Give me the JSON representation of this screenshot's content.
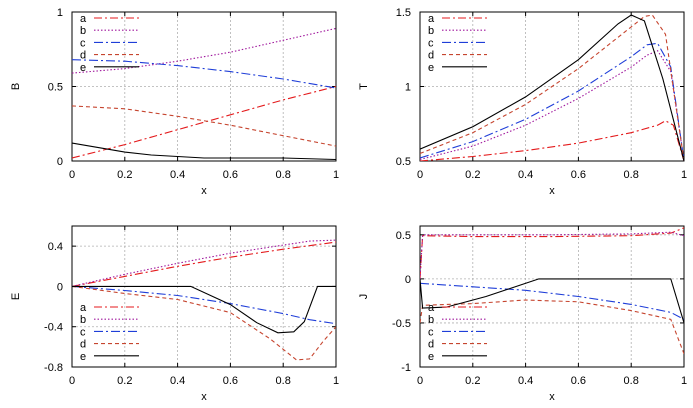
{
  "figure": {
    "series_names": [
      "a",
      "b",
      "c",
      "d",
      "e"
    ]
  },
  "chart_data": [
    {
      "type": "line",
      "xlabel": "x",
      "ylabel": "B",
      "xlim": [
        0,
        1
      ],
      "ylim": [
        0,
        1
      ],
      "xticks": [
        0,
        0.2,
        0.4,
        0.6,
        0.8,
        1
      ],
      "xtick_labels": [
        "0",
        "0.2",
        "0.4",
        "0.6",
        "0.8",
        "1"
      ],
      "yticks": [
        0,
        0.5,
        1
      ],
      "ytick_labels": [
        "0",
        "0.5",
        "1"
      ],
      "grid": true,
      "legend_position": "top-left",
      "series": [
        {
          "name": "a",
          "x": [
            0,
            0.2,
            0.4,
            0.6,
            0.8,
            1
          ],
          "y": [
            0.02,
            0.11,
            0.21,
            0.31,
            0.41,
            0.5
          ]
        },
        {
          "name": "b",
          "x": [
            0,
            0.2,
            0.4,
            0.6,
            0.8,
            1
          ],
          "y": [
            0.59,
            0.62,
            0.67,
            0.73,
            0.81,
            0.89
          ]
        },
        {
          "name": "c",
          "x": [
            0,
            0.2,
            0.4,
            0.6,
            0.8,
            1
          ],
          "y": [
            0.68,
            0.67,
            0.64,
            0.6,
            0.55,
            0.49
          ]
        },
        {
          "name": "d",
          "x": [
            0,
            0.2,
            0.4,
            0.6,
            0.8,
            1
          ],
          "y": [
            0.37,
            0.35,
            0.3,
            0.24,
            0.17,
            0.1
          ]
        },
        {
          "name": "e",
          "x": [
            0,
            0.1,
            0.2,
            0.3,
            0.4,
            0.5,
            0.6,
            0.8,
            1
          ],
          "y": [
            0.12,
            0.09,
            0.06,
            0.04,
            0.03,
            0.02,
            0.02,
            0.02,
            0.01
          ]
        }
      ]
    },
    {
      "type": "line",
      "xlabel": "x",
      "ylabel": "T",
      "xlim": [
        0,
        1
      ],
      "ylim": [
        0.5,
        1.5
      ],
      "xticks": [
        0,
        0.2,
        0.4,
        0.6,
        0.8,
        1
      ],
      "xtick_labels": [
        "0",
        "0.2",
        "0.4",
        "0.6",
        "0.8",
        "1"
      ],
      "yticks": [
        0.5,
        1,
        1.5
      ],
      "ytick_labels": [
        "0.5",
        "1",
        "1.5"
      ],
      "grid": true,
      "legend_position": "top-left",
      "series": [
        {
          "name": "a",
          "x": [
            0,
            0.2,
            0.4,
            0.6,
            0.8,
            0.9,
            0.93,
            0.96,
            1
          ],
          "y": [
            0.5,
            0.53,
            0.57,
            0.62,
            0.69,
            0.74,
            0.77,
            0.74,
            0.5
          ]
        },
        {
          "name": "b",
          "x": [
            0,
            0.2,
            0.4,
            0.6,
            0.8,
            0.86,
            0.9,
            0.95,
            1
          ],
          "y": [
            0.51,
            0.6,
            0.74,
            0.92,
            1.13,
            1.21,
            1.24,
            1.1,
            0.5
          ]
        },
        {
          "name": "c",
          "x": [
            0,
            0.2,
            0.4,
            0.6,
            0.8,
            0.86,
            0.9,
            0.95,
            1
          ],
          "y": [
            0.52,
            0.63,
            0.78,
            0.97,
            1.2,
            1.28,
            1.29,
            1.13,
            0.5
          ]
        },
        {
          "name": "d",
          "x": [
            0,
            0.2,
            0.4,
            0.6,
            0.8,
            0.85,
            0.88,
            0.93,
            1
          ],
          "y": [
            0.55,
            0.69,
            0.88,
            1.12,
            1.4,
            1.47,
            1.48,
            1.35,
            0.5
          ]
        },
        {
          "name": "e",
          "x": [
            0,
            0.2,
            0.4,
            0.6,
            0.75,
            0.8,
            0.85,
            0.92,
            1
          ],
          "y": [
            0.58,
            0.73,
            0.93,
            1.18,
            1.42,
            1.48,
            1.44,
            1.05,
            0.5
          ]
        }
      ]
    },
    {
      "type": "line",
      "xlabel": "x",
      "ylabel": "E",
      "xlim": [
        0,
        1
      ],
      "ylim": [
        -0.8,
        0.6
      ],
      "xticks": [
        0,
        0.2,
        0.4,
        0.6,
        0.8,
        1
      ],
      "xtick_labels": [
        "0",
        "0.2",
        "0.4",
        "0.6",
        "0.8",
        "1"
      ],
      "yticks": [
        -0.8,
        -0.4,
        0,
        0.4
      ],
      "ytick_labels": [
        "-0.8",
        "-0.4",
        "0",
        "0.4"
      ],
      "grid": true,
      "legend_position": "bottom-left",
      "series": [
        {
          "name": "a",
          "x": [
            0,
            0.2,
            0.4,
            0.6,
            0.8,
            1
          ],
          "y": [
            0,
            0.1,
            0.2,
            0.29,
            0.37,
            0.44
          ]
        },
        {
          "name": "b",
          "x": [
            0,
            0.2,
            0.4,
            0.6,
            0.8,
            0.9,
            1
          ],
          "y": [
            0,
            0.12,
            0.23,
            0.33,
            0.41,
            0.45,
            0.46
          ]
        },
        {
          "name": "c",
          "x": [
            0,
            0.2,
            0.4,
            0.6,
            0.8,
            0.9,
            1
          ],
          "y": [
            0,
            -0.04,
            -0.09,
            -0.17,
            -0.27,
            -0.33,
            -0.37
          ]
        },
        {
          "name": "d",
          "x": [
            0,
            0.2,
            0.4,
            0.6,
            0.75,
            0.85,
            0.9,
            0.95,
            1
          ],
          "y": [
            0,
            -0.07,
            -0.13,
            -0.26,
            -0.52,
            -0.73,
            -0.72,
            -0.55,
            -0.4
          ]
        },
        {
          "name": "e",
          "x": [
            0,
            0.45,
            0.6,
            0.7,
            0.78,
            0.84,
            0.88,
            0.93,
            1
          ],
          "y": [
            0,
            0,
            -0.18,
            -0.36,
            -0.46,
            -0.45,
            -0.35,
            0,
            0
          ]
        }
      ]
    },
    {
      "type": "line",
      "xlabel": "x",
      "ylabel": "J",
      "xlim": [
        0,
        1
      ],
      "ylim": [
        -1,
        0.6
      ],
      "xticks": [
        0,
        0.2,
        0.4,
        0.6,
        0.8,
        1
      ],
      "xtick_labels": [
        "0",
        "0.2",
        "0.4",
        "0.6",
        "0.8",
        "1"
      ],
      "yticks": [
        -1,
        -0.5,
        0,
        0.5
      ],
      "ytick_labels": [
        "-1",
        "-0.5",
        "0",
        "0.5"
      ],
      "grid": true,
      "legend_position": "bottom-left",
      "series": [
        {
          "name": "a",
          "x": [
            0,
            0.01,
            0.2,
            0.5,
            0.8,
            0.95,
            1
          ],
          "y": [
            0,
            0.49,
            0.48,
            0.48,
            0.49,
            0.52,
            0.58
          ]
        },
        {
          "name": "b",
          "x": [
            0,
            0.01,
            0.2,
            0.5,
            0.8,
            0.95,
            1
          ],
          "y": [
            0,
            0.5,
            0.5,
            0.5,
            0.51,
            0.53,
            0.49
          ]
        },
        {
          "name": "c",
          "x": [
            0,
            0.2,
            0.4,
            0.6,
            0.8,
            0.95,
            1
          ],
          "y": [
            -0.05,
            -0.09,
            -0.13,
            -0.2,
            -0.29,
            -0.38,
            -0.46
          ]
        },
        {
          "name": "d",
          "x": [
            0,
            0.01,
            0.2,
            0.4,
            0.6,
            0.8,
            0.95,
            1
          ],
          "y": [
            -0.5,
            -0.3,
            -0.28,
            -0.24,
            -0.26,
            -0.36,
            -0.46,
            -0.85
          ]
        },
        {
          "name": "e",
          "x": [
            0,
            0.01,
            0.1,
            0.25,
            0.45,
            0.6,
            0.8,
            0.95,
            1
          ],
          "y": [
            0,
            -0.33,
            -0.32,
            -0.2,
            0,
            0,
            0,
            0,
            -0.5
          ]
        }
      ]
    }
  ],
  "series_style": {
    "a": {
      "color": "#e41a1c",
      "dash": "8,3,2,3"
    },
    "b": {
      "color": "#a0179d",
      "dash": "1.5,2"
    },
    "c": {
      "color": "#1f3ed8",
      "dash": "9,3,2,3"
    },
    "d": {
      "color": "#c6452f",
      "dash": "4,3"
    },
    "e": {
      "color": "#000000",
      "dash": ""
    }
  },
  "colors": {
    "grid": "#b0b0b0",
    "axis": "#000000"
  }
}
